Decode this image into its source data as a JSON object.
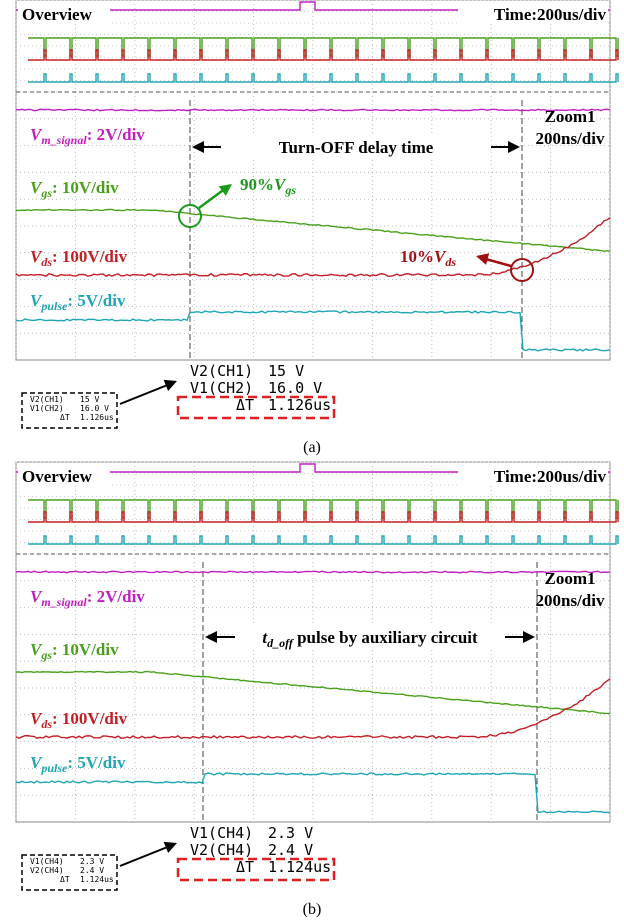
{
  "panels": [
    {
      "overview": "Overview",
      "time_scale": "Time:200us/div",
      "zoom": "Zoom1",
      "zoom_scale": "200ns/div",
      "channels": [
        {
          "symbol": "V",
          "subscript": "m_signal",
          "scale": ": 2V/div"
        },
        {
          "symbol": "V",
          "subscript": "gs",
          "scale": ": 10V/div"
        },
        {
          "symbol": "V",
          "subscript": "ds",
          "scale": ": 100V/div"
        },
        {
          "symbol": "V",
          "subscript": "pulse",
          "scale": ": 5V/div"
        }
      ],
      "delay_label": {
        "text": "Turn-OFF delay time"
      },
      "annotations": [
        {
          "text": "90%",
          "symbol": "V",
          "subscript": "gs"
        },
        {
          "text": "10%",
          "symbol": "V",
          "subscript": "ds"
        }
      ],
      "measurements": [
        {
          "name": "V2(CH1)",
          "value": "15 V"
        },
        {
          "name": "V1(CH2)",
          "value": "16.0 V"
        },
        {
          "name": "ΔT",
          "value": "1.126us"
        }
      ],
      "caption": "(a)"
    },
    {
      "overview": "Overview",
      "time_scale": "Time:200us/div",
      "zoom": "Zoom1",
      "zoom_scale": "200ns/div",
      "channels": [
        {
          "symbol": "V",
          "subscript": "m_signal",
          "scale": ": 2V/div"
        },
        {
          "symbol": "V",
          "subscript": "gs",
          "scale": ": 10V/div"
        },
        {
          "symbol": "V",
          "subscript": "ds",
          "scale": ": 100V/div"
        },
        {
          "symbol": "V",
          "subscript": "pulse",
          "scale": ": 5V/div"
        }
      ],
      "delay_label": {
        "symbol": "t",
        "subscript": "d_off",
        "text": " pulse by auxiliary circuit"
      },
      "annotations": [],
      "measurements": [
        {
          "name": "V1(CH4)",
          "value": "2.3 V"
        },
        {
          "name": "V2(CH4)",
          "value": "2.4 V"
        },
        {
          "name": "ΔT",
          "value": "1.124us"
        }
      ],
      "caption": "(b)"
    }
  ]
}
